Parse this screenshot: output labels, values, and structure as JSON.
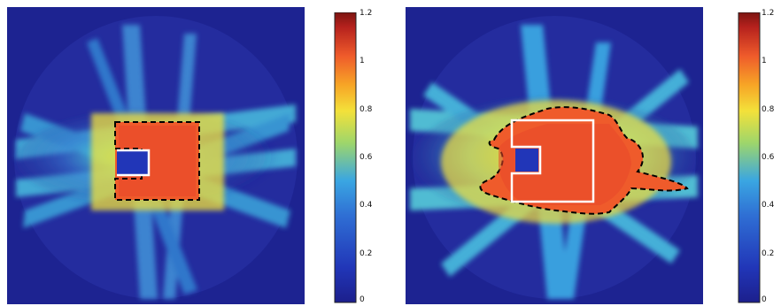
{
  "figure": {
    "panels": [
      {
        "name": "left-dose-map"
      },
      {
        "name": "right-dose-map"
      }
    ],
    "colorbars": [
      {
        "name": "left-colorbar",
        "ticks": [
          "1.2",
          "1",
          "0.8",
          "0.6",
          "0.4",
          "0.2",
          "0"
        ]
      },
      {
        "name": "right-colorbar",
        "ticks": [
          "1.2",
          "1",
          "0.8",
          "0.6",
          "0.4",
          "0.2",
          "0"
        ]
      }
    ],
    "colormap": [
      "#1c1f8c",
      "#2136b8",
      "#2f6fd4",
      "#3aa6e2",
      "#47c9d6",
      "#9ed66b",
      "#f3e13a",
      "#f7a526",
      "#ef5b2b",
      "#b5211d",
      "#7c1410"
    ]
  }
}
